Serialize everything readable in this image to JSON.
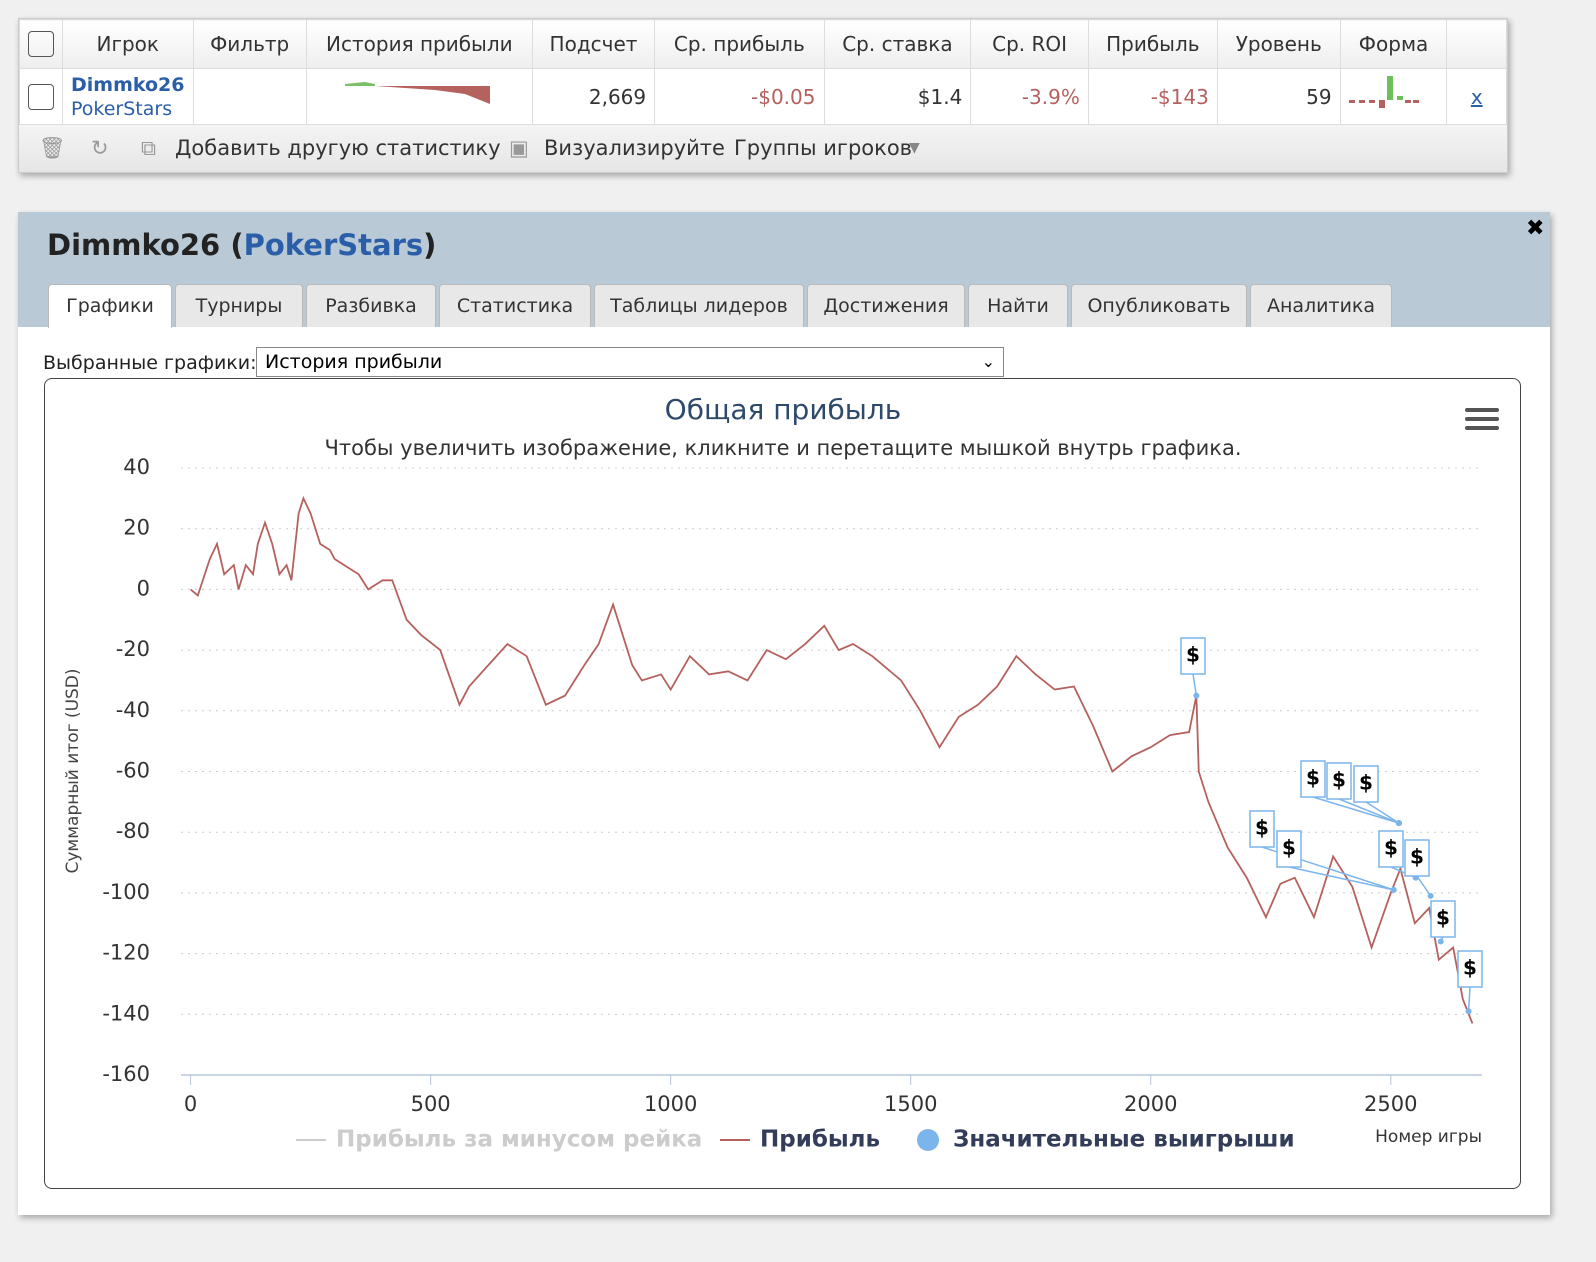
{
  "table": {
    "headers": [
      "Игрок",
      "Фильтр",
      "История прибыли",
      "Подсчет",
      "Ср. прибыль",
      "Ср. ставка",
      "Ср. ROI",
      "Прибыль",
      "Уровень",
      "Форма"
    ],
    "row": {
      "player": "Dimmko26",
      "site": "PokerStars",
      "count": "2,669",
      "avg_profit": "-$0.05",
      "avg_stake": "$1.4",
      "roi": "-3.9%",
      "profit": "-$143",
      "level": "59",
      "link": "x"
    },
    "toolbar": [
      "Добавить другую статистику",
      "Визуализируйте",
      "Группы игроков"
    ]
  },
  "panel": {
    "title_prefix": "Dimmko26 (",
    "site": "PokerStars",
    "title_suffix": ")",
    "tabs": [
      "Графики",
      "Турниры",
      "Разбивка",
      "Статистика",
      "Таблицы лидеров",
      "Достижения",
      "Найти",
      "Опубликовать",
      "Аналитика"
    ],
    "selector_label": "Выбранные графики:",
    "selector_value": "История прибыли"
  },
  "chart_data": {
    "type": "line",
    "title": "Общая прибыль",
    "subtitle": "Чтобы увеличить изображение, кликните и перетащите мышкой внутрь графика.",
    "y_label": "Суммарный итог (USD)",
    "x_label": "Номер игры",
    "xlim": [
      -20,
      2690
    ],
    "xticks": [
      0,
      500,
      1000,
      1500,
      2000,
      2500
    ],
    "ylim": [
      -160,
      40
    ],
    "yticks": [
      -160,
      -140,
      -120,
      -100,
      -80,
      -60,
      -40,
      -20,
      0,
      20,
      40
    ],
    "grid": true,
    "flag_label": "$",
    "series": [
      {
        "name": "Прибыль за минусом рейка",
        "color": "#cccccc",
        "visible": false
      },
      {
        "name": "Прибыль",
        "color": "#b5615e",
        "x": [
          0,
          15,
          40,
          55,
          70,
          90,
          100,
          115,
          130,
          140,
          155,
          170,
          185,
          200,
          210,
          225,
          235,
          250,
          270,
          290,
          300,
          320,
          350,
          370,
          400,
          420,
          450,
          480,
          520,
          560,
          580,
          620,
          660,
          700,
          740,
          780,
          820,
          850,
          880,
          900,
          920,
          940,
          980,
          1000,
          1040,
          1080,
          1120,
          1160,
          1200,
          1240,
          1280,
          1320,
          1350,
          1380,
          1420,
          1480,
          1520,
          1560,
          1600,
          1640,
          1680,
          1720,
          1760,
          1800,
          1840,
          1880,
          1920,
          1960,
          2000,
          2040,
          2080,
          2095,
          2100,
          2120,
          2160,
          2200,
          2240,
          2270,
          2300,
          2340,
          2380,
          2420,
          2460,
          2500,
          2520,
          2550,
          2580,
          2600,
          2630,
          2650,
          2670
        ],
        "values": [
          0,
          -2,
          10,
          15,
          5,
          8,
          0,
          8,
          5,
          15,
          22,
          15,
          5,
          8,
          3,
          25,
          30,
          25,
          15,
          13,
          10,
          8,
          5,
          0,
          3,
          3,
          -10,
          -15,
          -20,
          -38,
          -32,
          -25,
          -18,
          -22,
          -38,
          -35,
          -25,
          -18,
          -5,
          -15,
          -25,
          -30,
          -28,
          -33,
          -22,
          -28,
          -27,
          -30,
          -20,
          -23,
          -18,
          -12,
          -20,
          -18,
          -22,
          -30,
          -40,
          -52,
          -42,
          -38,
          -32,
          -22,
          -28,
          -33,
          -32,
          -45,
          -60,
          -55,
          -52,
          -48,
          -47,
          -35,
          -60,
          -70,
          -85,
          -95,
          -108,
          -97,
          -95,
          -108,
          -88,
          -98,
          -118,
          -100,
          -92,
          -110,
          -105,
          -122,
          -118,
          -135,
          -143
        ]
      },
      {
        "name": "Значительные выигрыши",
        "color": "#7cb5ec",
        "x": [
          2095,
          2506,
          2506,
          2517,
          2517,
          2517,
          2552,
          2583,
          2604,
          2662
        ],
        "values": [
          -35,
          -99,
          -99,
          -77,
          -77,
          -77,
          -95,
          -101,
          -116,
          -139
        ]
      }
    ]
  }
}
